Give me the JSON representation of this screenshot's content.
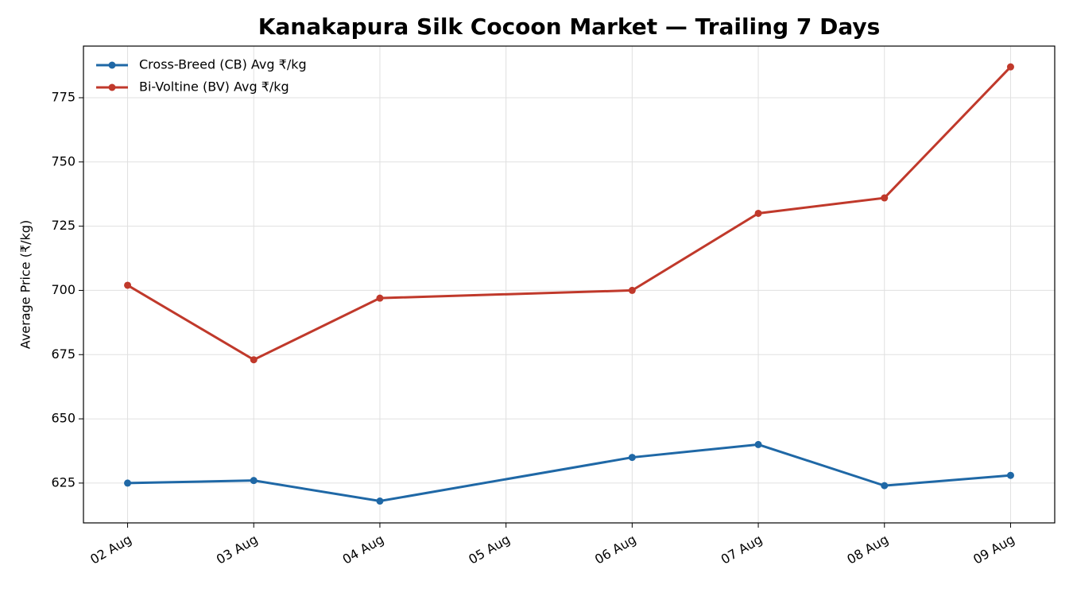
{
  "chart_data": {
    "type": "line",
    "title": "Kanakapura Silk Cocoon Market — Trailing 7 Days",
    "y_label": "Average Price (₹/kg)",
    "x": [
      2,
      3,
      4,
      6,
      7,
      8,
      9
    ],
    "xlim": [
      1.65,
      9.35
    ],
    "xticks": [
      {
        "value": 2,
        "label": "02 Aug"
      },
      {
        "value": 3,
        "label": "03 Aug"
      },
      {
        "value": 4,
        "label": "04 Aug"
      },
      {
        "value": 5,
        "label": "05 Aug"
      },
      {
        "value": 6,
        "label": "06 Aug"
      },
      {
        "value": 7,
        "label": "07 Aug"
      },
      {
        "value": 8,
        "label": "08 Aug"
      },
      {
        "value": 9,
        "label": "09 Aug"
      }
    ],
    "ylim": [
      609.5,
      795.1
    ],
    "yticks": [
      625,
      650,
      675,
      700,
      725,
      750,
      775
    ],
    "grid": true,
    "legend": "upper-left",
    "series": [
      {
        "name": "Cross-Breed (CB) Avg ₹/kg",
        "color": "#1f68a6",
        "values": [
          625,
          626,
          618,
          635,
          640,
          624,
          628
        ]
      },
      {
        "name": "Bi-Voltine (BV) Avg ₹/kg",
        "color": "#c0392b",
        "values": [
          702,
          673,
          697,
          700,
          730,
          736,
          787
        ]
      }
    ]
  }
}
